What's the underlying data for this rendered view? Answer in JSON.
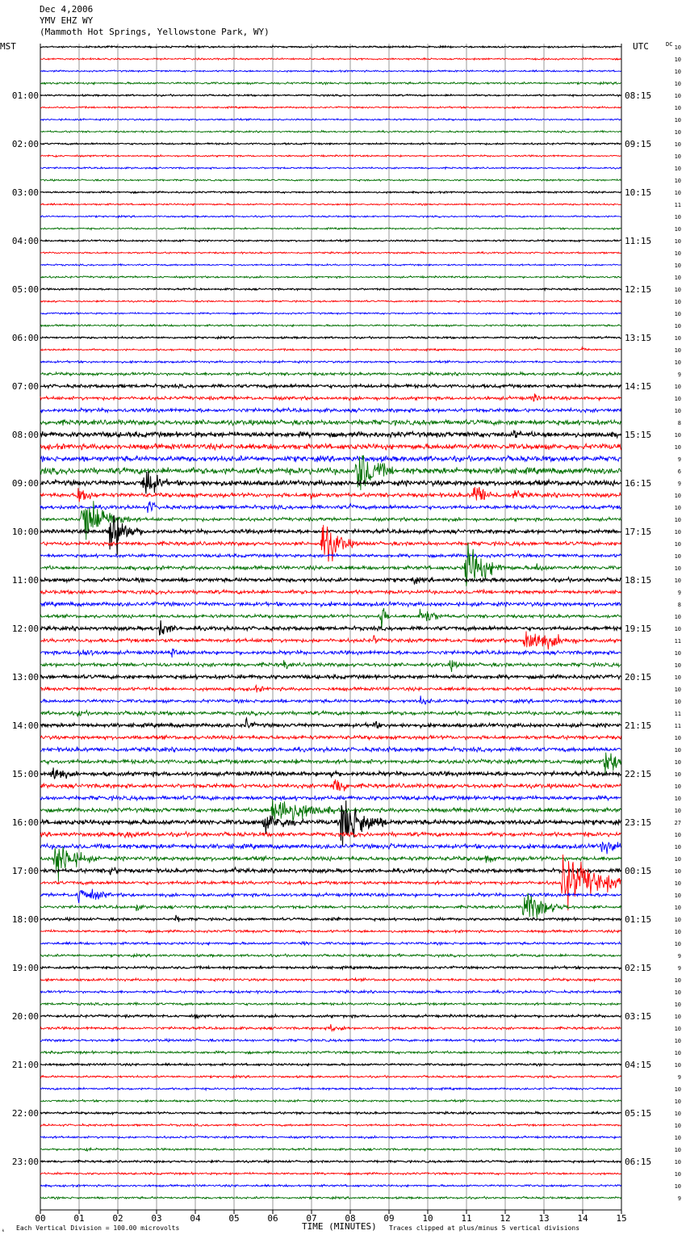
{
  "header": {
    "date": "Dec 4,2006",
    "station": "YMV EHZ WY",
    "location": "(Mammoth Hot Springs, Yellowstone Park, WY)",
    "left_zone": "MST",
    "right_zone": "UTC"
  },
  "footer": {
    "scale_note": "Each Vertical Division =  100.00 microvolts",
    "xlabel": "TIME (MINUTES)",
    "clip_note": "Traces clipped at plus/minus 5 vertical divisions",
    "corner_mark": "ₖ"
  },
  "dc_label": "DC",
  "colors": {
    "trace_cycle": [
      "#000000",
      "#ff0000",
      "#0000ff",
      "#007000"
    ],
    "grid": "#808080"
  },
  "chart_data": {
    "type": "line",
    "title": "",
    "xlabel": "TIME (MINUTES)",
    "ylabel": "",
    "xlim": [
      0,
      15
    ],
    "x_ticks": [
      "00",
      "01",
      "02",
      "03",
      "04",
      "05",
      "06",
      "07",
      "08",
      "09",
      "10",
      "11",
      "12",
      "13",
      "14",
      "15"
    ],
    "rows_per_hour": 4,
    "row_count": 96,
    "left_hour_labels": [
      "01:00",
      "02:00",
      "03:00",
      "04:00",
      "05:00",
      "06:00",
      "07:00",
      "08:00",
      "09:00",
      "10:00",
      "11:00",
      "12:00",
      "13:00",
      "14:00",
      "15:00",
      "16:00",
      "17:00",
      "18:00",
      "19:00",
      "20:00",
      "21:00",
      "22:00",
      "23:00"
    ],
    "right_hour_labels": [
      "08:15",
      "09:15",
      "10:15",
      "11:15",
      "12:15",
      "13:15",
      "14:15",
      "15:15",
      "16:15",
      "17:15",
      "18:15",
      "19:15",
      "20:15",
      "21:15",
      "22:15",
      "23:15",
      "00:15",
      "01:15",
      "02:15",
      "03:15",
      "04:15",
      "05:15",
      "06:15"
    ],
    "dc_offsets": [
      10,
      10,
      10,
      10,
      10,
      10,
      10,
      10,
      10,
      10,
      10,
      10,
      10,
      11,
      10,
      10,
      10,
      10,
      10,
      10,
      10,
      10,
      10,
      10,
      10,
      10,
      10,
      9,
      10,
      10,
      10,
      8,
      10,
      10,
      9,
      6,
      9,
      10,
      10,
      10,
      10,
      10,
      10,
      10,
      10,
      9,
      8,
      10,
      10,
      11,
      10,
      10,
      10,
      10,
      10,
      11,
      11,
      10,
      10,
      10,
      10,
      10,
      10,
      10,
      27,
      10,
      10,
      10,
      10,
      10,
      10,
      10,
      10,
      10,
      10,
      9,
      9,
      10,
      10,
      10,
      10,
      10,
      10,
      10,
      10,
      9,
      10,
      10,
      10,
      10,
      10,
      10,
      10,
      10,
      10,
      9
    ],
    "noise_levels": [
      0.8,
      0.8,
      0.8,
      1.0,
      0.8,
      0.8,
      0.8,
      0.8,
      0.8,
      0.8,
      0.8,
      0.8,
      0.8,
      0.8,
      0.8,
      0.8,
      0.8,
      0.8,
      0.8,
      0.9,
      0.8,
      0.8,
      0.8,
      0.9,
      0.9,
      0.9,
      1.0,
      1.4,
      1.6,
      1.6,
      1.8,
      2.4,
      2.4,
      2.6,
      2.6,
      3.0,
      2.4,
      2.0,
      1.8,
      1.6,
      1.8,
      1.8,
      1.6,
      1.8,
      1.8,
      1.8,
      2.0,
      1.6,
      1.8,
      1.8,
      1.8,
      1.8,
      1.8,
      1.6,
      1.6,
      1.8,
      1.8,
      1.8,
      2.0,
      2.0,
      2.0,
      2.0,
      2.0,
      2.0,
      2.2,
      2.0,
      2.2,
      2.0,
      1.8,
      1.6,
      1.6,
      1.4,
      1.2,
      1.2,
      1.2,
      1.2,
      1.2,
      1.2,
      1.2,
      1.2,
      1.2,
      1.2,
      1.2,
      1.2,
      1.0,
      1.0,
      1.0,
      1.0,
      1.0,
      1.0,
      1.0,
      1.0,
      1.0,
      1.0,
      1.0,
      1.0
    ],
    "events": [
      {
        "row": 3,
        "minute": 4.3,
        "amplitude": 2,
        "duration": 0.3
      },
      {
        "row": 9,
        "minute": 0.4,
        "amplitude": 2,
        "duration": 0.2
      },
      {
        "row": 21,
        "minute": 0.3,
        "amplitude": 2,
        "duration": 0.3
      },
      {
        "row": 25,
        "minute": 14.0,
        "amplitude": 3,
        "duration": 0.3
      },
      {
        "row": 29,
        "minute": 12.7,
        "amplitude": 5,
        "duration": 0.5
      },
      {
        "row": 32,
        "minute": 12.2,
        "amplitude": 5,
        "duration": 0.8
      },
      {
        "row": 33,
        "minute": 13.7,
        "amplitude": 4,
        "duration": 0.3
      },
      {
        "row": 35,
        "minute": 8.2,
        "amplitude": 28,
        "duration": 1.0
      },
      {
        "row": 36,
        "minute": 2.7,
        "amplitude": 20,
        "duration": 0.7
      },
      {
        "row": 37,
        "minute": 7.0,
        "amplitude": 6,
        "duration": 0.6
      },
      {
        "row": 37,
        "minute": 11.2,
        "amplitude": 14,
        "duration": 0.8
      },
      {
        "row": 37,
        "minute": 1.0,
        "amplitude": 12,
        "duration": 0.6
      },
      {
        "row": 37,
        "minute": 12.2,
        "amplitude": 8,
        "duration": 0.6
      },
      {
        "row": 38,
        "minute": 2.8,
        "amplitude": 8,
        "duration": 0.5
      },
      {
        "row": 38,
        "minute": 8.0,
        "amplitude": 5,
        "duration": 0.4
      },
      {
        "row": 39,
        "minute": 1.1,
        "amplitude": 28,
        "duration": 1.2
      },
      {
        "row": 40,
        "minute": 1.8,
        "amplitude": 30,
        "duration": 0.8
      },
      {
        "row": 41,
        "minute": 7.3,
        "amplitude": 28,
        "duration": 0.8
      },
      {
        "row": 43,
        "minute": 11.0,
        "amplitude": 28,
        "duration": 1.0
      },
      {
        "row": 43,
        "minute": 12.8,
        "amplitude": 6,
        "duration": 0.6
      },
      {
        "row": 44,
        "minute": 9.6,
        "amplitude": 5,
        "duration": 0.5
      },
      {
        "row": 45,
        "minute": 5.5,
        "amplitude": 3,
        "duration": 0.4
      },
      {
        "row": 47,
        "minute": 9.8,
        "amplitude": 10,
        "duration": 0.9
      },
      {
        "row": 47,
        "minute": 8.8,
        "amplitude": 14,
        "duration": 0.3
      },
      {
        "row": 48,
        "minute": 3.1,
        "amplitude": 10,
        "duration": 0.6
      },
      {
        "row": 49,
        "minute": 12.5,
        "amplitude": 14,
        "duration": 1.8
      },
      {
        "row": 49,
        "minute": 8.6,
        "amplitude": 6,
        "duration": 0.3
      },
      {
        "row": 50,
        "minute": 1.0,
        "amplitude": 5,
        "duration": 1.5
      },
      {
        "row": 50,
        "minute": 3.4,
        "amplitude": 6,
        "duration": 0.3
      },
      {
        "row": 51,
        "minute": 6.3,
        "amplitude": 6,
        "duration": 0.4
      },
      {
        "row": 51,
        "minute": 10.6,
        "amplitude": 6,
        "duration": 0.6
      },
      {
        "row": 53,
        "minute": 5.5,
        "amplitude": 4,
        "duration": 1.0
      },
      {
        "row": 54,
        "minute": 9.8,
        "amplitude": 5,
        "duration": 0.8
      },
      {
        "row": 54,
        "minute": 11.0,
        "amplitude": 5,
        "duration": 0.3
      },
      {
        "row": 55,
        "minute": 1.0,
        "amplitude": 5,
        "duration": 0.5
      },
      {
        "row": 56,
        "minute": 5.3,
        "amplitude": 8,
        "duration": 0.4
      },
      {
        "row": 56,
        "minute": 8.6,
        "amplitude": 5,
        "duration": 0.5
      },
      {
        "row": 58,
        "minute": 9.0,
        "amplitude": 4,
        "duration": 0.3
      },
      {
        "row": 59,
        "minute": 14.6,
        "amplitude": 16,
        "duration": 0.8
      },
      {
        "row": 59,
        "minute": 6.6,
        "amplitude": 4,
        "duration": 0.5
      },
      {
        "row": 60,
        "minute": 0.3,
        "amplitude": 10,
        "duration": 0.8
      },
      {
        "row": 60,
        "minute": 7.5,
        "amplitude": 5,
        "duration": 0.6
      },
      {
        "row": 60,
        "minute": 1.7,
        "amplitude": 4,
        "duration": 0.3
      },
      {
        "row": 61,
        "minute": 7.6,
        "amplitude": 10,
        "duration": 0.8
      },
      {
        "row": 63,
        "minute": 6.0,
        "amplitude": 18,
        "duration": 2.0
      },
      {
        "row": 64,
        "minute": 7.8,
        "amplitude": 30,
        "duration": 1.2
      },
      {
        "row": 64,
        "minute": 5.8,
        "amplitude": 10,
        "duration": 1.6
      },
      {
        "row": 65,
        "minute": 2.2,
        "amplitude": 5,
        "duration": 1.2
      },
      {
        "row": 65,
        "minute": 14.0,
        "amplitude": 4,
        "duration": 0.3
      },
      {
        "row": 66,
        "minute": 14.5,
        "amplitude": 8,
        "duration": 1.2
      },
      {
        "row": 66,
        "minute": 9.0,
        "amplitude": 4,
        "duration": 1.0
      },
      {
        "row": 67,
        "minute": 0.4,
        "amplitude": 24,
        "duration": 1.0
      },
      {
        "row": 67,
        "minute": 11.5,
        "amplitude": 6,
        "duration": 0.5
      },
      {
        "row": 68,
        "minute": 1.8,
        "amplitude": 6,
        "duration": 0.6
      },
      {
        "row": 68,
        "minute": 5.0,
        "amplitude": 4,
        "duration": 0.3
      },
      {
        "row": 69,
        "minute": 13.5,
        "amplitude": 30,
        "duration": 1.8
      },
      {
        "row": 70,
        "minute": 1.0,
        "amplitude": 10,
        "duration": 1.2
      },
      {
        "row": 71,
        "minute": 12.5,
        "amplitude": 18,
        "duration": 1.2
      },
      {
        "row": 71,
        "minute": 2.5,
        "amplitude": 5,
        "duration": 0.3
      },
      {
        "row": 72,
        "minute": 3.5,
        "amplitude": 4,
        "duration": 0.4
      },
      {
        "row": 72,
        "minute": 7.6,
        "amplitude": 4,
        "duration": 0.5
      },
      {
        "row": 74,
        "minute": 6.8,
        "amplitude": 4,
        "duration": 0.3
      },
      {
        "row": 75,
        "minute": 9.2,
        "amplitude": 4,
        "duration": 0.3
      },
      {
        "row": 81,
        "minute": 7.5,
        "amplitude": 5,
        "duration": 0.8
      },
      {
        "row": 80,
        "minute": 4.0,
        "amplitude": 3,
        "duration": 0.3
      },
      {
        "row": 91,
        "minute": 1.2,
        "amplitude": 3,
        "duration": 0.3
      }
    ]
  }
}
